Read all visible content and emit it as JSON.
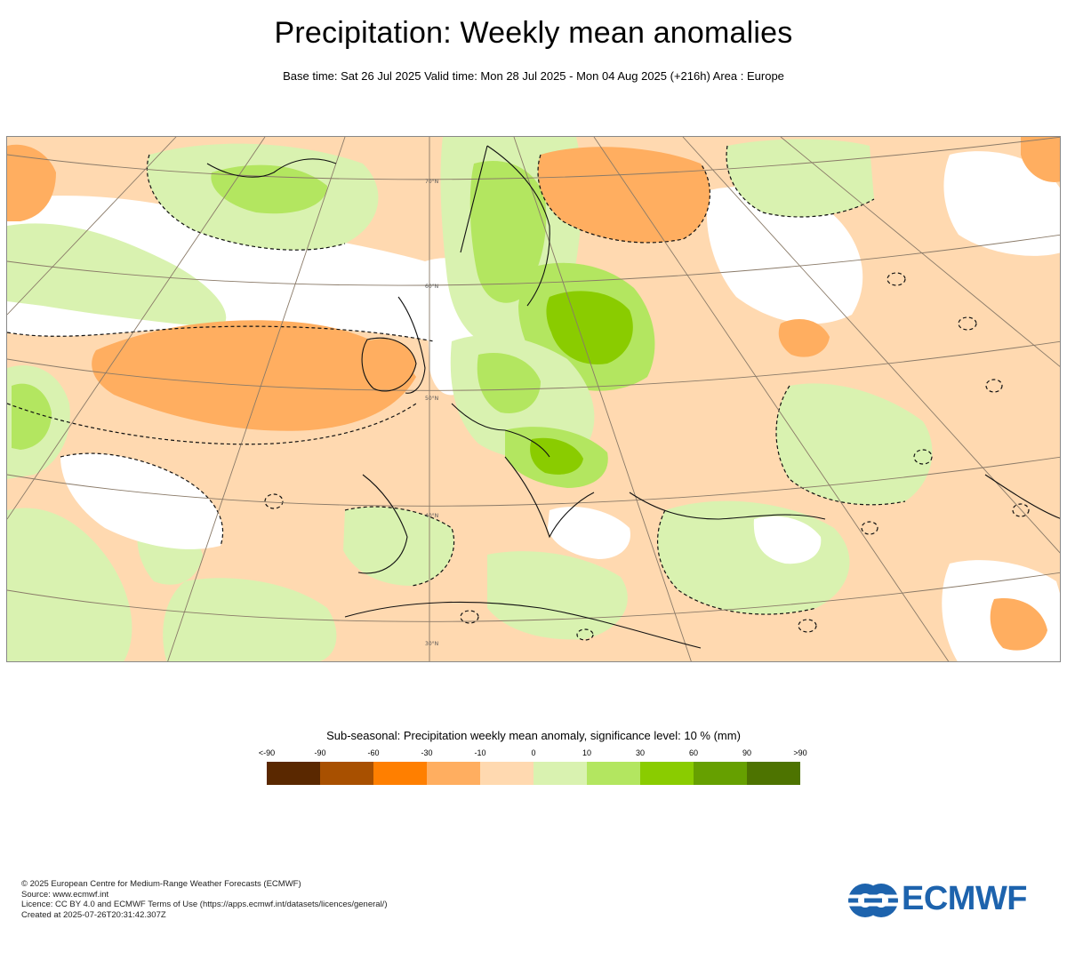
{
  "header": {
    "title": "Precipitation: Weekly mean anomalies",
    "subtitle": "Base time: Sat 26 Jul 2025 Valid time: Mon 28 Jul 2025 - Mon 04 Aug 2025 (+216h) Area : Europe"
  },
  "map": {
    "region": "Europe",
    "lat_labels": [
      "70°N",
      "60°N",
      "50°N",
      "40°N",
      "30°N"
    ]
  },
  "legend": {
    "title": "Sub-seasonal: Precipitation weekly mean anomaly, significance level: 10 % (mm)",
    "ticks": [
      "<-90",
      "-90",
      "-60",
      "-30",
      "-10",
      "0",
      "10",
      "30",
      "60",
      "90",
      ">90"
    ],
    "colors": [
      "#5a2800",
      "#a85000",
      "#ff7f00",
      "#ffae60",
      "#ffd9b0",
      "#ffffff",
      "#d9f2b0",
      "#b3e660",
      "#8acc00",
      "#66a000",
      "#4d7300"
    ]
  },
  "footer": {
    "lines": [
      "© 2025 European Centre for Medium-Range Weather Forecasts (ECMWF)",
      "Source: www.ecmwf.int",
      "Licence: CC BY 4.0 and ECMWF Terms of Use (https://apps.ecmwf.int/datasets/licences/general/)",
      "Created at 2025-07-26T20:31:42.307Z"
    ]
  },
  "logo": {
    "text": "ECMWF",
    "color": "#1d63ad"
  }
}
